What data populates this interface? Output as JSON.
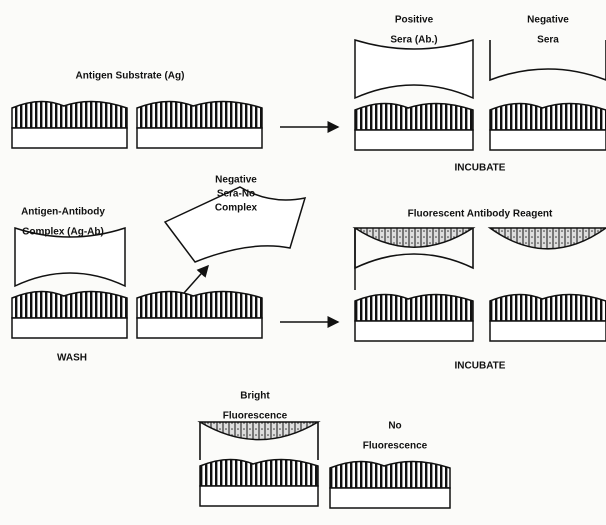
{
  "labels": {
    "antigen_substrate": {
      "lines": [
        "Antigen Substrate (Ag)"
      ]
    },
    "positive_sera": {
      "lines": [
        "Positive",
        "Sera (Ab.)"
      ]
    },
    "negative_sera": {
      "lines": [
        "Negative",
        "Sera"
      ]
    },
    "incubate_1": {
      "lines": [
        "INCUBATE"
      ]
    },
    "antigen_antibody": {
      "lines": [
        "Antigen-Antibody",
        "Complex (Ag-Ab)"
      ]
    },
    "negative_no_complex": {
      "lines": [
        "Negative",
        "Sera-No",
        "Complex"
      ]
    },
    "fluorescent_reagent": {
      "lines": [
        "Fluorescent Antibody Reagent"
      ]
    },
    "wash": {
      "lines": [
        "WASH"
      ]
    },
    "incubate_2": {
      "lines": [
        "INCUBATE"
      ]
    },
    "bright_fluorescence": {
      "lines": [
        "Bright",
        "Fluorescence"
      ]
    },
    "no_fluorescence": {
      "lines": [
        "No",
        "Fluorescence"
      ]
    }
  }
}
